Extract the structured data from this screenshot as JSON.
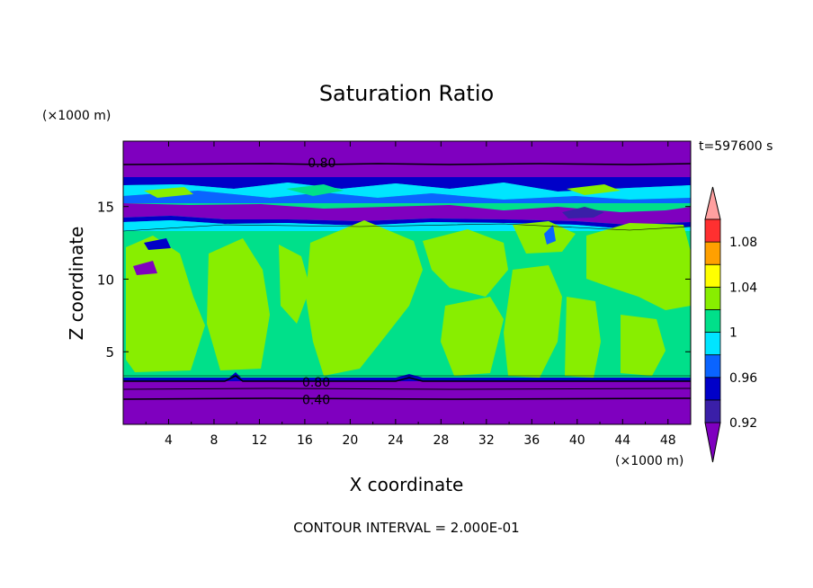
{
  "chart_data": {
    "type": "heatmap",
    "title": "Saturation Ratio",
    "xlabel": "X coordinate",
    "ylabel": "Z coordinate",
    "x_unit": "(×1000 m)",
    "y_unit": "(×1000 m)",
    "time_label": "t=597600 s",
    "footer": "CONTOUR INTERVAL = 2.000E-01",
    "xlim": [
      0,
      50
    ],
    "ylim": [
      0,
      19.5
    ],
    "x_ticks": [
      4,
      8,
      12,
      16,
      20,
      24,
      28,
      32,
      36,
      40,
      44,
      48
    ],
    "y_ticks": [
      5,
      10,
      15
    ],
    "contour_labels": [
      {
        "text": "0.80",
        "x": 17.5,
        "z": 18.0
      },
      {
        "text": "0.80",
        "x": 17.0,
        "z": 2.9
      },
      {
        "text": "0.40",
        "x": 17.0,
        "z": 1.7
      }
    ],
    "colorbar": {
      "labels": [
        "1.08",
        "1.04",
        "1",
        "0.96",
        "0.92"
      ],
      "levels": [
        {
          "lo": null,
          "hi": 0.92,
          "color": "#7f00bf"
        },
        {
          "lo": 0.92,
          "hi": 0.94,
          "color": "#3a1fa8"
        },
        {
          "lo": 0.94,
          "hi": 0.96,
          "color": "#0000c8"
        },
        {
          "lo": 0.96,
          "hi": 0.98,
          "color": "#0a64ff"
        },
        {
          "lo": 0.98,
          "hi": 1.0,
          "color": "#00e5ff"
        },
        {
          "lo": 1.0,
          "hi": 1.02,
          "color": "#00e08a"
        },
        {
          "lo": 1.02,
          "hi": 1.04,
          "color": "#88ee00"
        },
        {
          "lo": 1.04,
          "hi": 1.06,
          "color": "#ffff00"
        },
        {
          "lo": 1.06,
          "hi": 1.08,
          "color": "#ffa000"
        },
        {
          "lo": 1.08,
          "hi": 1.1,
          "color": "#ff3030"
        },
        {
          "lo": 1.1,
          "hi": null,
          "color": "#ffa0a0"
        }
      ]
    },
    "regions": [
      {
        "level": 0.9,
        "z": [
          0.0,
          3.1
        ],
        "desc": "lower dry layer"
      },
      {
        "level": 1.01,
        "z": [
          3.1,
          14.5
        ],
        "desc": "saturated mid layer with near-1.03 plumes"
      },
      {
        "level": 0.98,
        "z": [
          14.5,
          17.5
        ],
        "desc": "upper mixed layer"
      },
      {
        "level": 0.9,
        "z": [
          17.5,
          19.5
        ],
        "desc": "upper dry layer"
      }
    ]
  }
}
